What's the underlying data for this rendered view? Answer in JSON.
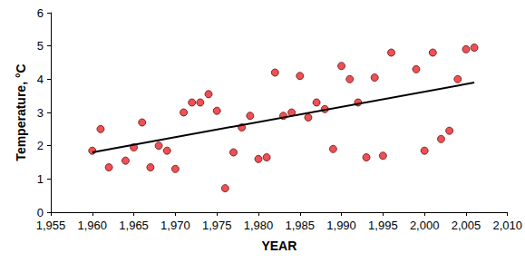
{
  "chart_data": {
    "type": "scatter",
    "x_label": "YEAR",
    "y_label": "Temperature, °C",
    "xlim": [
      1955,
      2010
    ],
    "xticks": [
      1955,
      1960,
      1965,
      1970,
      1975,
      1980,
      1985,
      1990,
      1995,
      2000,
      2005,
      2010
    ],
    "ylim": [
      0,
      6
    ],
    "yticks": [
      0,
      1,
      2,
      3,
      4,
      5,
      6
    ],
    "grid": false,
    "series": [
      {
        "type": "scatter",
        "color": "#e8262a",
        "marker": "circle",
        "x": [
          1960,
          1961,
          1962,
          1964,
          1965,
          1966,
          1967,
          1968,
          1969,
          1970,
          1971,
          1972,
          1973,
          1974,
          1975,
          1976,
          1977,
          1978,
          1979,
          1980,
          1981,
          1982,
          1983,
          1984,
          1985,
          1986,
          1987,
          1988,
          1989,
          1990,
          1991,
          1992,
          1993,
          1994,
          1995,
          1996,
          1999,
          2000,
          2001,
          2002,
          2003,
          2004,
          2005,
          2006
        ],
        "values": [
          1.85,
          2.5,
          1.35,
          1.55,
          1.95,
          2.7,
          1.35,
          2.0,
          1.85,
          1.3,
          3.0,
          3.3,
          3.3,
          3.55,
          3.05,
          0.72,
          1.8,
          2.55,
          2.9,
          1.6,
          1.65,
          4.2,
          2.9,
          3.0,
          4.1,
          2.85,
          3.3,
          3.1,
          1.9,
          4.4,
          4.0,
          3.3,
          1.65,
          4.05,
          1.7,
          4.8,
          4.3,
          1.85,
          4.8,
          2.2,
          2.45,
          4.0,
          4.9,
          4.95
        ]
      },
      {
        "type": "line",
        "color": "#000000",
        "line_style": "solid",
        "x": [
          1960,
          2006
        ],
        "values": [
          1.8,
          3.9
        ]
      }
    ]
  }
}
